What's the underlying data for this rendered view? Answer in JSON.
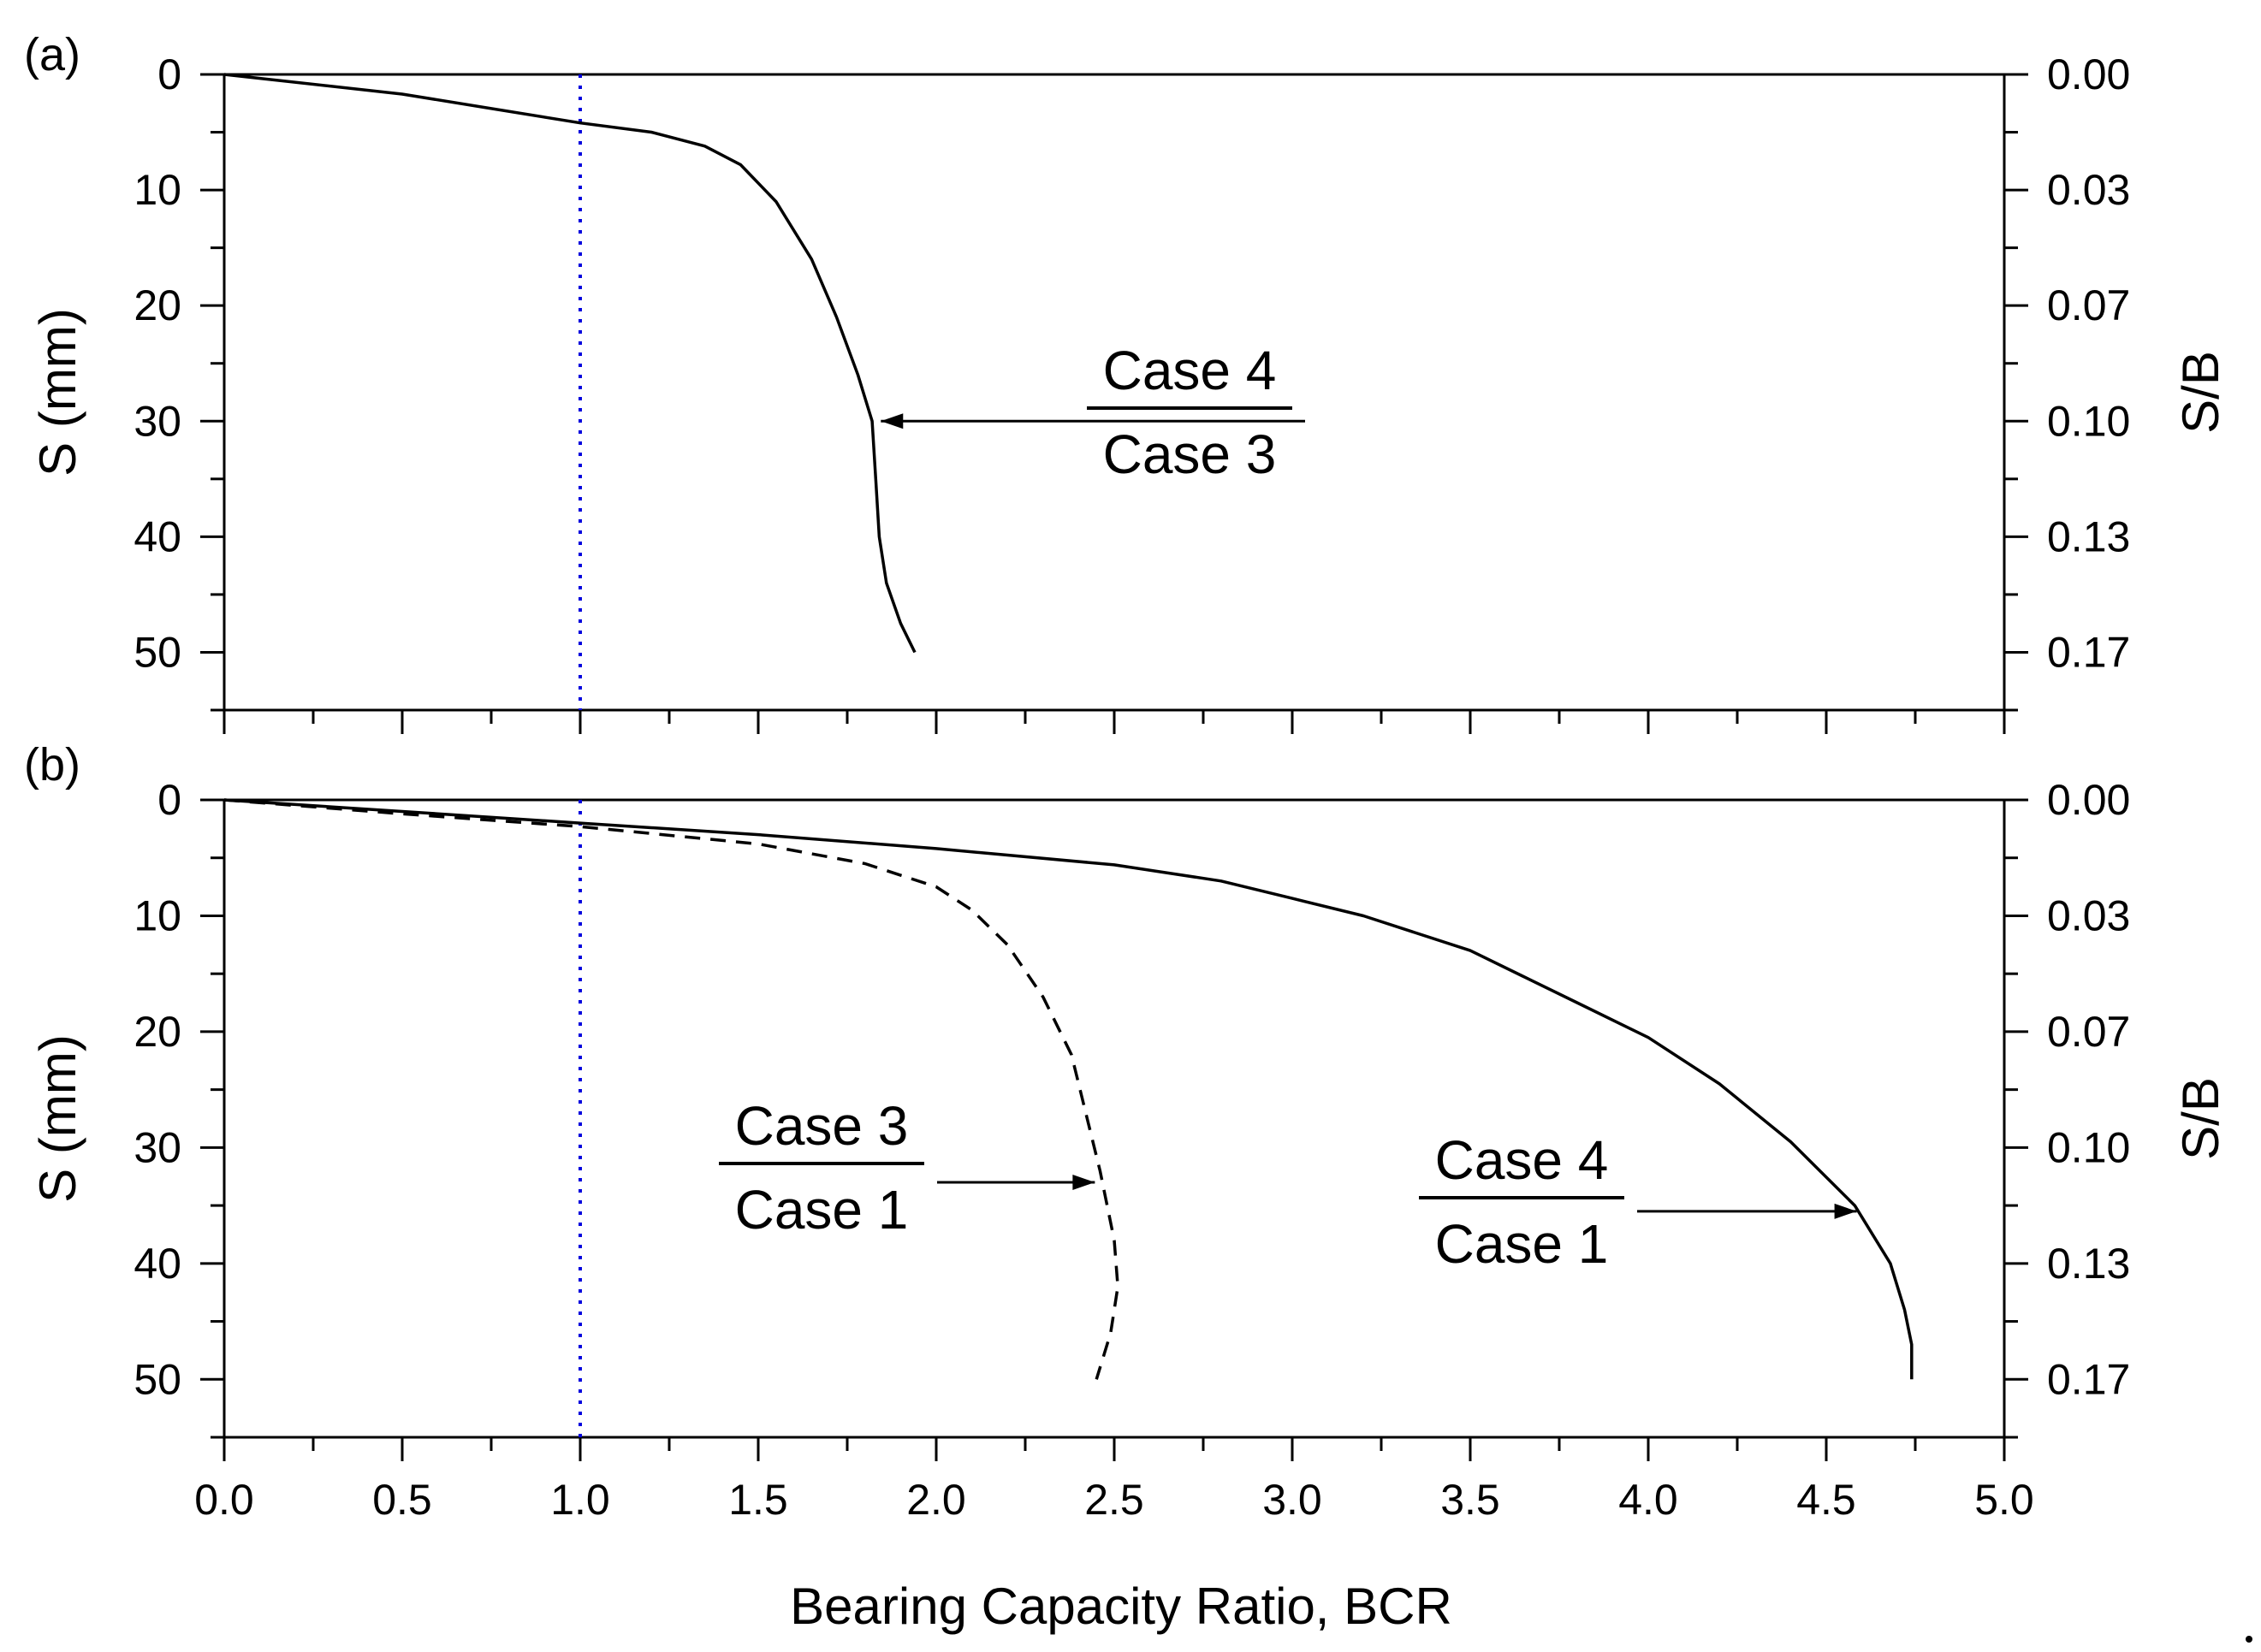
{
  "chart_data": {
    "type": "line",
    "x_axis": {
      "label": "Bearing Capacity Ratio, BCR",
      "range": [
        0.0,
        5.0
      ],
      "ticks": [
        0.0,
        0.5,
        1.0,
        1.5,
        2.0,
        2.5,
        3.0,
        3.5,
        4.0,
        4.5,
        5.0
      ],
      "tick_labels": [
        "0.0",
        "0.5",
        "1.0",
        "1.5",
        "2.0",
        "2.5",
        "3.0",
        "3.5",
        "4.0",
        "4.5",
        "5.0"
      ]
    },
    "reference_line": {
      "x": 1.0,
      "style": "dotted",
      "color": "#0000dd"
    },
    "panels": [
      {
        "tag": "(a)",
        "left_axis": {
          "label": "S (mm)",
          "range": [
            0,
            55
          ],
          "ticks": [
            0,
            10,
            20,
            30,
            40,
            50
          ],
          "tick_labels": [
            "0",
            "10",
            "20",
            "30",
            "40",
            "50"
          ]
        },
        "right_axis": {
          "label": "S/B",
          "tick_labels": [
            "0.00",
            "0.03",
            "0.07",
            "0.10",
            "0.13",
            "0.17"
          ]
        },
        "series": [
          {
            "name": "Case 4 / Case 3",
            "style": "solid",
            "points": [
              [
                0,
                0
              ],
              [
                0.5,
                1.7
              ],
              [
                1.0,
                4.2
              ],
              [
                1.2,
                5.0
              ],
              [
                1.35,
                6.2
              ],
              [
                1.45,
                7.8
              ],
              [
                1.55,
                11.0
              ],
              [
                1.65,
                16.0
              ],
              [
                1.72,
                21.0
              ],
              [
                1.78,
                26.0
              ],
              [
                1.82,
                30.0
              ],
              [
                1.83,
                35.0
              ],
              [
                1.84,
                40.0
              ],
              [
                1.86,
                44.0
              ],
              [
                1.9,
                47.5
              ],
              [
                1.94,
                50.0
              ]
            ]
          }
        ],
        "annotations": [
          {
            "numerator": "Case 4",
            "denominator": "Case 3",
            "arrow_to": [
              1.83,
              30.0
            ]
          }
        ]
      },
      {
        "tag": "(b)",
        "left_axis": {
          "label": "S (mm)",
          "range": [
            0,
            55
          ],
          "ticks": [
            0,
            10,
            20,
            30,
            40,
            50
          ],
          "tick_labels": [
            "0",
            "10",
            "20",
            "30",
            "40",
            "50"
          ]
        },
        "right_axis": {
          "label": "S/B",
          "tick_labels": [
            "0.00",
            "0.03",
            "0.07",
            "0.10",
            "0.13",
            "0.17"
          ]
        },
        "series": [
          {
            "name": "Case 3 / Case 1",
            "style": "dashed",
            "points": [
              [
                0,
                0
              ],
              [
                0.5,
                1.2
              ],
              [
                1.0,
                2.3
              ],
              [
                1.5,
                3.8
              ],
              [
                1.8,
                5.5
              ],
              [
                2.0,
                7.5
              ],
              [
                2.1,
                9.5
              ],
              [
                2.2,
                12.5
              ],
              [
                2.3,
                17.0
              ],
              [
                2.38,
                22.0
              ],
              [
                2.42,
                27.0
              ],
              [
                2.46,
                32.0
              ],
              [
                2.5,
                38.0
              ],
              [
                2.51,
                42.0
              ],
              [
                2.49,
                46.0
              ],
              [
                2.45,
                50.0
              ]
            ]
          },
          {
            "name": "Case 4 / Case 1",
            "style": "solid",
            "points": [
              [
                0,
                0
              ],
              [
                0.5,
                1.0
              ],
              [
                1.0,
                2.0
              ],
              [
                1.5,
                3.0
              ],
              [
                2.0,
                4.2
              ],
              [
                2.5,
                5.6
              ],
              [
                2.8,
                7.0
              ],
              [
                3.0,
                8.5
              ],
              [
                3.2,
                10.0
              ],
              [
                3.5,
                13.0
              ],
              [
                3.8,
                17.5
              ],
              [
                4.0,
                20.5
              ],
              [
                4.2,
                24.5
              ],
              [
                4.4,
                29.5
              ],
              [
                4.58,
                35.0
              ],
              [
                4.68,
                40.0
              ],
              [
                4.72,
                44.0
              ],
              [
                4.74,
                47.0
              ],
              [
                4.74,
                50.0
              ]
            ]
          }
        ],
        "annotations": [
          {
            "numerator": "Case 3",
            "denominator": "Case 1",
            "arrow_to": [
              2.46,
              33.0
            ]
          },
          {
            "numerator": "Case 4",
            "denominator": "Case 1",
            "arrow_to": [
              4.6,
              35.5
            ]
          }
        ]
      }
    ]
  }
}
